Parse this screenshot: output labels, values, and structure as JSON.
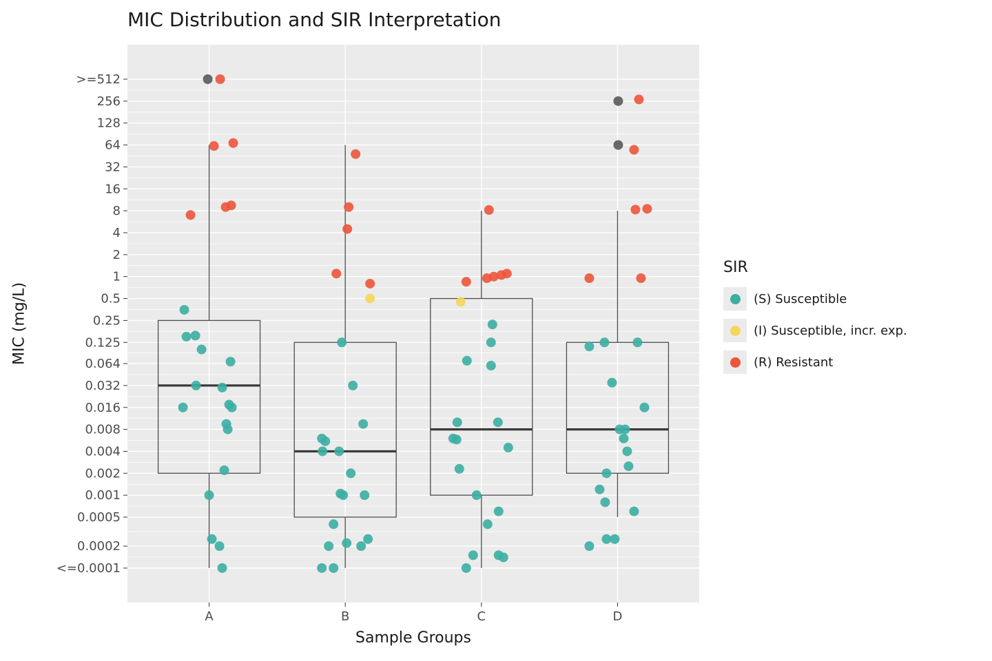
{
  "title": "MIC Distribution and SIR Interpretation",
  "xlabel": "Sample Groups",
  "ylabel": "MIC (mg/L)",
  "legend": {
    "title": "SIR",
    "entries": [
      {
        "label": "(S) Susceptible",
        "color": "#3CAEA3",
        "code": "S"
      },
      {
        "label": "(I) Susceptible, incr. exp.",
        "color": "#F6D55C",
        "code": "I"
      },
      {
        "label": "(R) Resistant",
        "color": "#ED553B",
        "code": "R"
      }
    ]
  },
  "chart_data": {
    "type": "boxplot+jitter",
    "title": "MIC Distribution and SIR Interpretation",
    "xlabel": "Sample Groups",
    "ylabel": "MIC (mg/L)",
    "y_scale": "log2",
    "grid": true,
    "legend_position": "right",
    "categories": [
      "A",
      "B",
      "C",
      "D"
    ],
    "y_ticks": [
      ">=512",
      "256",
      "128",
      "64",
      "32",
      "16",
      "8",
      "4",
      "2",
      "1",
      "0.5",
      "0.25",
      "0.125",
      "0.064",
      "0.032",
      "0.016",
      "0.008",
      "0.004",
      "0.002",
      "0.001",
      "0.0005",
      "0.0002",
      "<=0.0001"
    ],
    "y_tick_values": [
      512,
      256,
      128,
      64,
      32,
      16,
      8,
      4,
      2,
      1,
      0.5,
      0.25,
      0.125,
      0.064,
      0.032,
      0.016,
      0.008,
      0.004,
      0.002,
      0.001,
      0.0005,
      0.0002,
      0.0001
    ],
    "colors": {
      "S": "#3CAEA3",
      "I": "#F6D55C",
      "R": "#ED553B",
      "NA": "#5A5A5A"
    },
    "panel_bg": "#EBEBEB",
    "boxes": [
      {
        "group": "A",
        "whisker_low": 0.0001,
        "q1": 0.002,
        "median": 0.032,
        "q3": 0.25,
        "whisker_high": 64
      },
      {
        "group": "B",
        "whisker_low": 0.0001,
        "q1": 0.0005,
        "median": 0.004,
        "q3": 0.125,
        "whisker_high": 64
      },
      {
        "group": "C",
        "whisker_low": 0.0001,
        "q1": 0.001,
        "median": 0.008,
        "q3": 0.5,
        "whisker_high": 8
      },
      {
        "group": "D",
        "whisker_low": 0.0005,
        "q1": 0.002,
        "median": 0.008,
        "q3": 0.125,
        "whisker_high": 8
      }
    ],
    "points": [
      {
        "g": "A",
        "mic": 512,
        "sir": "NA",
        "dx": -2
      },
      {
        "g": "A",
        "mic": 512,
        "sir": "R",
        "dx": 16
      },
      {
        "g": "A",
        "mic": 62,
        "sir": "R",
        "dx": 7
      },
      {
        "g": "A",
        "mic": 68,
        "sir": "R",
        "dx": 35
      },
      {
        "g": "A",
        "mic": 7,
        "sir": "R",
        "dx": -27
      },
      {
        "g": "A",
        "mic": 9,
        "sir": "R",
        "dx": 24
      },
      {
        "g": "A",
        "mic": 9.5,
        "sir": "R",
        "dx": 32
      },
      {
        "g": "A",
        "mic": 0.35,
        "sir": "S",
        "dx": -36
      },
      {
        "g": "A",
        "mic": 0.15,
        "sir": "S",
        "dx": -33
      },
      {
        "g": "A",
        "mic": 0.155,
        "sir": "S",
        "dx": -20
      },
      {
        "g": "A",
        "mic": 0.1,
        "sir": "S",
        "dx": -11
      },
      {
        "g": "A",
        "mic": 0.068,
        "sir": "S",
        "dx": 31
      },
      {
        "g": "A",
        "mic": 0.032,
        "sir": "S",
        "dx": -19
      },
      {
        "g": "A",
        "mic": 0.03,
        "sir": "S",
        "dx": 19
      },
      {
        "g": "A",
        "mic": 0.016,
        "sir": "S",
        "dx": -38
      },
      {
        "g": "A",
        "mic": 0.0175,
        "sir": "S",
        "dx": 29
      },
      {
        "g": "A",
        "mic": 0.016,
        "sir": "S",
        "dx": 33
      },
      {
        "g": "A",
        "mic": 0.0095,
        "sir": "S",
        "dx": 25
      },
      {
        "g": "A",
        "mic": 0.008,
        "sir": "S",
        "dx": 27
      },
      {
        "g": "A",
        "mic": 0.0022,
        "sir": "S",
        "dx": 22
      },
      {
        "g": "A",
        "mic": 0.001,
        "sir": "S",
        "dx": 0
      },
      {
        "g": "A",
        "mic": 0.00025,
        "sir": "S",
        "dx": 4
      },
      {
        "g": "A",
        "mic": 0.0002,
        "sir": "S",
        "dx": 15
      },
      {
        "g": "A",
        "mic": 0.0001,
        "sir": "S",
        "dx": 19
      },
      {
        "g": "B",
        "mic": 48,
        "sir": "R",
        "dx": 15
      },
      {
        "g": "B",
        "mic": 9,
        "sir": "R",
        "dx": 5
      },
      {
        "g": "B",
        "mic": 4.5,
        "sir": "R",
        "dx": 3
      },
      {
        "g": "B",
        "mic": 1.1,
        "sir": "R",
        "dx": -13
      },
      {
        "g": "B",
        "mic": 0.8,
        "sir": "R",
        "dx": 36
      },
      {
        "g": "B",
        "mic": 0.5,
        "sir": "I",
        "dx": 36
      },
      {
        "g": "B",
        "mic": 0.125,
        "sir": "S",
        "dx": -5
      },
      {
        "g": "B",
        "mic": 0.032,
        "sir": "S",
        "dx": 11
      },
      {
        "g": "B",
        "mic": 0.0095,
        "sir": "S",
        "dx": 26
      },
      {
        "g": "B",
        "mic": 0.006,
        "sir": "S",
        "dx": -34
      },
      {
        "g": "B",
        "mic": 0.0055,
        "sir": "S",
        "dx": -29
      },
      {
        "g": "B",
        "mic": 0.004,
        "sir": "S",
        "dx": -33
      },
      {
        "g": "B",
        "mic": 0.004,
        "sir": "S",
        "dx": -9
      },
      {
        "g": "B",
        "mic": 0.002,
        "sir": "S",
        "dx": 8
      },
      {
        "g": "B",
        "mic": 0.00105,
        "sir": "S",
        "dx": -7
      },
      {
        "g": "B",
        "mic": 0.001,
        "sir": "S",
        "dx": -3
      },
      {
        "g": "B",
        "mic": 0.001,
        "sir": "S",
        "dx": 28
      },
      {
        "g": "B",
        "mic": 0.0004,
        "sir": "S",
        "dx": -17
      },
      {
        "g": "B",
        "mic": 0.00022,
        "sir": "S",
        "dx": 2
      },
      {
        "g": "B",
        "mic": 0.0002,
        "sir": "S",
        "dx": -24
      },
      {
        "g": "B",
        "mic": 0.0002,
        "sir": "S",
        "dx": 23
      },
      {
        "g": "B",
        "mic": 0.00025,
        "sir": "S",
        "dx": 33
      },
      {
        "g": "B",
        "mic": 0.0001,
        "sir": "S",
        "dx": -34
      },
      {
        "g": "B",
        "mic": 0.0001,
        "sir": "S",
        "dx": -17
      },
      {
        "g": "C",
        "mic": 8.2,
        "sir": "R",
        "dx": 11
      },
      {
        "g": "C",
        "mic": 0.85,
        "sir": "R",
        "dx": -22
      },
      {
        "g": "C",
        "mic": 0.95,
        "sir": "R",
        "dx": 8
      },
      {
        "g": "C",
        "mic": 1.0,
        "sir": "R",
        "dx": 18
      },
      {
        "g": "C",
        "mic": 1.05,
        "sir": "R",
        "dx": 29
      },
      {
        "g": "C",
        "mic": 1.1,
        "sir": "R",
        "dx": 37
      },
      {
        "g": "C",
        "mic": 0.45,
        "sir": "I",
        "dx": -30
      },
      {
        "g": "C",
        "mic": 0.22,
        "sir": "S",
        "dx": 16
      },
      {
        "g": "C",
        "mic": 0.125,
        "sir": "S",
        "dx": 14
      },
      {
        "g": "C",
        "mic": 0.07,
        "sir": "S",
        "dx": -21
      },
      {
        "g": "C",
        "mic": 0.06,
        "sir": "S",
        "dx": 14
      },
      {
        "g": "C",
        "mic": 0.01,
        "sir": "S",
        "dx": -35
      },
      {
        "g": "C",
        "mic": 0.01,
        "sir": "S",
        "dx": 24
      },
      {
        "g": "C",
        "mic": 0.006,
        "sir": "S",
        "dx": -41
      },
      {
        "g": "C",
        "mic": 0.0058,
        "sir": "S",
        "dx": -36
      },
      {
        "g": "C",
        "mic": 0.0045,
        "sir": "S",
        "dx": 39
      },
      {
        "g": "C",
        "mic": 0.0023,
        "sir": "S",
        "dx": -32
      },
      {
        "g": "C",
        "mic": 0.001,
        "sir": "S",
        "dx": -7
      },
      {
        "g": "C",
        "mic": 0.0006,
        "sir": "S",
        "dx": 25
      },
      {
        "g": "C",
        "mic": 0.0004,
        "sir": "S",
        "dx": 9
      },
      {
        "g": "C",
        "mic": 0.00015,
        "sir": "S",
        "dx": -12
      },
      {
        "g": "C",
        "mic": 0.00015,
        "sir": "S",
        "dx": 25
      },
      {
        "g": "C",
        "mic": 0.00014,
        "sir": "S",
        "dx": 32
      },
      {
        "g": "C",
        "mic": 0.0001,
        "sir": "S",
        "dx": -22
      },
      {
        "g": "D",
        "mic": 256,
        "sir": "NA",
        "dx": 1
      },
      {
        "g": "D",
        "mic": 270,
        "sir": "R",
        "dx": 31
      },
      {
        "g": "D",
        "mic": 64,
        "sir": "NA",
        "dx": 1
      },
      {
        "g": "D",
        "mic": 55,
        "sir": "R",
        "dx": 24
      },
      {
        "g": "D",
        "mic": 8.3,
        "sir": "R",
        "dx": 26
      },
      {
        "g": "D",
        "mic": 8.5,
        "sir": "R",
        "dx": 43
      },
      {
        "g": "D",
        "mic": 0.95,
        "sir": "R",
        "dx": -41
      },
      {
        "g": "D",
        "mic": 0.95,
        "sir": "R",
        "dx": 34
      },
      {
        "g": "D",
        "mic": 0.125,
        "sir": "S",
        "dx": -19
      },
      {
        "g": "D",
        "mic": 0.125,
        "sir": "S",
        "dx": 29
      },
      {
        "g": "D",
        "mic": 0.11,
        "sir": "S",
        "dx": -41
      },
      {
        "g": "D",
        "mic": 0.035,
        "sir": "S",
        "dx": -8
      },
      {
        "g": "D",
        "mic": 0.016,
        "sir": "S",
        "dx": 39
      },
      {
        "g": "D",
        "mic": 0.008,
        "sir": "S",
        "dx": 3
      },
      {
        "g": "D",
        "mic": 0.008,
        "sir": "S",
        "dx": 11
      },
      {
        "g": "D",
        "mic": 0.006,
        "sir": "S",
        "dx": 9
      },
      {
        "g": "D",
        "mic": 0.004,
        "sir": "S",
        "dx": 14
      },
      {
        "g": "D",
        "mic": 0.0025,
        "sir": "S",
        "dx": 16
      },
      {
        "g": "D",
        "mic": 0.002,
        "sir": "S",
        "dx": -16
      },
      {
        "g": "D",
        "mic": 0.0012,
        "sir": "S",
        "dx": -26
      },
      {
        "g": "D",
        "mic": 0.0008,
        "sir": "S",
        "dx": -18
      },
      {
        "g": "D",
        "mic": 0.0006,
        "sir": "S",
        "dx": 24
      },
      {
        "g": "D",
        "mic": 0.00025,
        "sir": "S",
        "dx": -16
      },
      {
        "g": "D",
        "mic": 0.00025,
        "sir": "S",
        "dx": -4
      },
      {
        "g": "D",
        "mic": 0.0002,
        "sir": "S",
        "dx": -41
      }
    ]
  }
}
